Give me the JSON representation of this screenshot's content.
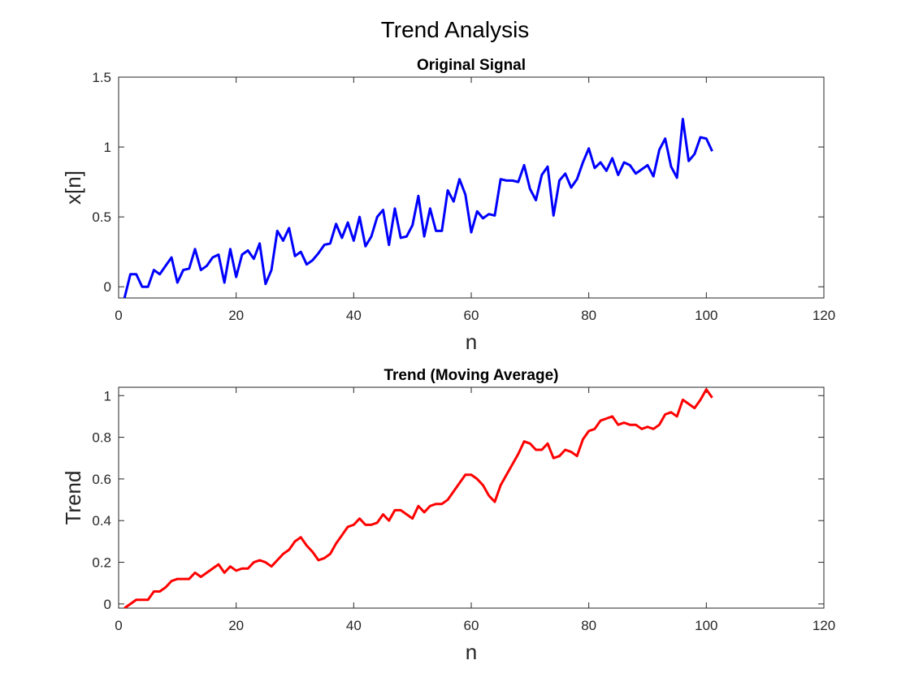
{
  "figure": {
    "title": "Trend Analysis"
  },
  "colors": {
    "original": "#0000ff",
    "trend": "#ff0000",
    "axis": "#262626"
  },
  "chart_data": [
    {
      "type": "line",
      "title": "Original Signal",
      "xlabel": "n",
      "ylabel": "x[n]",
      "xlim": [
        0,
        120
      ],
      "ylim": [
        -0.08,
        1.5
      ],
      "xticks": [
        0,
        20,
        40,
        60,
        80,
        100,
        120
      ],
      "yticks": [
        0,
        0.5,
        1,
        1.5
      ],
      "xtick_labels": [
        "0",
        "20",
        "40",
        "60",
        "80",
        "100",
        "120"
      ],
      "ytick_labels": [
        "0",
        "0.5",
        "1",
        "1.5"
      ],
      "grid": false,
      "series": [
        {
          "color": "#0000ff",
          "x": [
            1,
            2,
            3,
            4,
            5,
            6,
            7,
            8,
            9,
            10,
            11,
            12,
            13,
            14,
            15,
            16,
            17,
            18,
            19,
            20,
            21,
            22,
            23,
            24,
            25,
            26,
            27,
            28,
            29,
            30,
            31,
            32,
            33,
            34,
            35,
            36,
            37,
            38,
            39,
            40,
            41,
            42,
            43,
            44,
            45,
            46,
            47,
            48,
            49,
            50,
            51,
            52,
            53,
            54,
            55,
            56,
            57,
            58,
            59,
            60,
            61,
            62,
            63,
            64,
            65,
            66,
            67,
            68,
            69,
            70,
            71,
            72,
            73,
            74,
            75,
            76,
            77,
            78,
            79,
            80,
            81,
            82,
            83,
            84,
            85,
            86,
            87,
            88,
            89,
            90,
            91,
            92,
            93,
            94,
            95,
            96,
            97,
            98,
            99,
            100,
            101
          ],
          "y": [
            -0.08,
            0.09,
            0.09,
            0.0,
            0.0,
            0.12,
            0.09,
            0.15,
            0.21,
            0.03,
            0.12,
            0.13,
            0.27,
            0.12,
            0.15,
            0.21,
            0.23,
            0.03,
            0.27,
            0.07,
            0.23,
            0.26,
            0.2,
            0.31,
            0.02,
            0.12,
            0.4,
            0.33,
            0.42,
            0.22,
            0.25,
            0.16,
            0.19,
            0.24,
            0.3,
            0.31,
            0.45,
            0.35,
            0.46,
            0.33,
            0.5,
            0.29,
            0.36,
            0.5,
            0.55,
            0.3,
            0.56,
            0.35,
            0.36,
            0.44,
            0.65,
            0.36,
            0.56,
            0.4,
            0.4,
            0.69,
            0.61,
            0.77,
            0.66,
            0.39,
            0.54,
            0.49,
            0.52,
            0.51,
            0.77,
            0.76,
            0.76,
            0.75,
            0.87,
            0.7,
            0.62,
            0.8,
            0.86,
            0.51,
            0.76,
            0.81,
            0.71,
            0.77,
            0.89,
            0.99,
            0.85,
            0.89,
            0.83,
            0.92,
            0.8,
            0.89,
            0.87,
            0.81,
            0.84,
            0.87,
            0.79,
            0.98,
            1.06,
            0.86,
            0.78,
            1.2,
            0.9,
            0.95,
            1.07,
            1.06,
            0.97
          ]
        }
      ]
    },
    {
      "type": "line",
      "title": "Trend (Moving Average)",
      "xlabel": "n",
      "ylabel": "Trend",
      "xlim": [
        0,
        120
      ],
      "ylim": [
        -0.02,
        1.04
      ],
      "xticks": [
        0,
        20,
        40,
        60,
        80,
        100,
        120
      ],
      "yticks": [
        0,
        0.2,
        0.4,
        0.6,
        0.8,
        1
      ],
      "xtick_labels": [
        "0",
        "20",
        "40",
        "60",
        "80",
        "100",
        "120"
      ],
      "ytick_labels": [
        "0",
        "0.2",
        "0.4",
        "0.6",
        "0.8",
        "1"
      ],
      "grid": false,
      "series": [
        {
          "color": "#ff0000",
          "x": [
            1,
            2,
            3,
            4,
            5,
            6,
            7,
            8,
            9,
            10,
            11,
            12,
            13,
            14,
            15,
            16,
            17,
            18,
            19,
            20,
            21,
            22,
            23,
            24,
            25,
            26,
            27,
            28,
            29,
            30,
            31,
            32,
            33,
            34,
            35,
            36,
            37,
            38,
            39,
            40,
            41,
            42,
            43,
            44,
            45,
            46,
            47,
            48,
            49,
            50,
            51,
            52,
            53,
            54,
            55,
            56,
            57,
            58,
            59,
            60,
            61,
            62,
            63,
            64,
            65,
            66,
            67,
            68,
            69,
            70,
            71,
            72,
            73,
            74,
            75,
            76,
            77,
            78,
            79,
            80,
            81,
            82,
            83,
            84,
            85,
            86,
            87,
            88,
            89,
            90,
            91,
            92,
            93,
            94,
            95,
            96,
            97,
            98,
            99,
            100,
            101
          ],
          "y": [
            -0.02,
            0.0,
            0.02,
            0.02,
            0.02,
            0.06,
            0.06,
            0.08,
            0.11,
            0.12,
            0.12,
            0.12,
            0.15,
            0.13,
            0.15,
            0.17,
            0.19,
            0.15,
            0.18,
            0.16,
            0.17,
            0.17,
            0.2,
            0.21,
            0.2,
            0.18,
            0.21,
            0.24,
            0.26,
            0.3,
            0.32,
            0.28,
            0.25,
            0.21,
            0.22,
            0.24,
            0.29,
            0.33,
            0.37,
            0.38,
            0.41,
            0.38,
            0.38,
            0.39,
            0.43,
            0.4,
            0.45,
            0.45,
            0.43,
            0.41,
            0.47,
            0.44,
            0.47,
            0.48,
            0.48,
            0.5,
            0.54,
            0.58,
            0.62,
            0.62,
            0.6,
            0.57,
            0.52,
            0.49,
            0.57,
            0.62,
            0.67,
            0.72,
            0.78,
            0.77,
            0.74,
            0.74,
            0.77,
            0.7,
            0.71,
            0.74,
            0.73,
            0.71,
            0.79,
            0.83,
            0.84,
            0.88,
            0.89,
            0.9,
            0.86,
            0.87,
            0.86,
            0.86,
            0.84,
            0.85,
            0.84,
            0.86,
            0.91,
            0.92,
            0.9,
            0.98,
            0.96,
            0.94,
            0.98,
            1.03,
            0.99
          ]
        }
      ]
    }
  ]
}
